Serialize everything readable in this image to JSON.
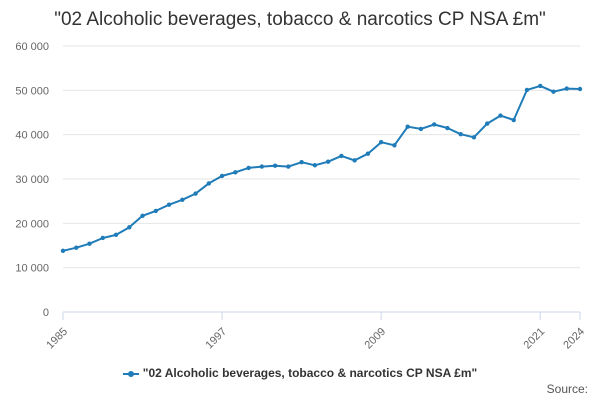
{
  "title": "\"02 Alcoholic beverages, tobacco & narcotics CP NSA £m\"",
  "source": "Source:",
  "legend": {
    "label": "\"02 Alcoholic beverages, tobacco & narcotics CP NSA £m\""
  },
  "colors": {
    "line": "#1f7cb8",
    "grid": "#e6e6e6",
    "axis": "#ccd6eb"
  },
  "chart_data": {
    "type": "line",
    "title": "\"02 Alcoholic beverages, tobacco & narcotics CP NSA £m\"",
    "xlabel": "",
    "ylabel": "",
    "xlim": [
      1985,
      2024
    ],
    "ylim": [
      0,
      60000
    ],
    "yticks": [
      0,
      10000,
      20000,
      30000,
      40000,
      50000,
      60000
    ],
    "ytick_labels": [
      "0",
      "10 000",
      "20 000",
      "30 000",
      "40 000",
      "50 000",
      "60 000"
    ],
    "xticks": [
      1985,
      1997,
      2009,
      2021,
      2024
    ],
    "xtick_labels": [
      "1985",
      "1997",
      "2009",
      "2021",
      "2024"
    ],
    "grid": true,
    "legend_position": "bottom",
    "series": [
      {
        "name": "\"02 Alcoholic beverages, tobacco & narcotics CP NSA £m\"",
        "x": [
          1985,
          1986,
          1987,
          1988,
          1989,
          1990,
          1991,
          1992,
          1993,
          1994,
          1995,
          1996,
          1997,
          1998,
          1999,
          2000,
          2001,
          2002,
          2003,
          2004,
          2005,
          2006,
          2007,
          2008,
          2009,
          2010,
          2011,
          2012,
          2013,
          2014,
          2015,
          2016,
          2017,
          2018,
          2019,
          2020,
          2021,
          2022,
          2023,
          2024
        ],
        "values": [
          13800,
          14500,
          15400,
          16700,
          17400,
          19100,
          21700,
          22800,
          24200,
          25300,
          26700,
          29000,
          30700,
          31500,
          32500,
          32800,
          33000,
          32800,
          33800,
          33100,
          33900,
          35200,
          34200,
          35700,
          38300,
          37600,
          41800,
          41300,
          42300,
          41500,
          40100,
          39400,
          42500,
          44300,
          43300,
          50100,
          51000,
          49700,
          50400,
          50300
        ]
      }
    ]
  }
}
